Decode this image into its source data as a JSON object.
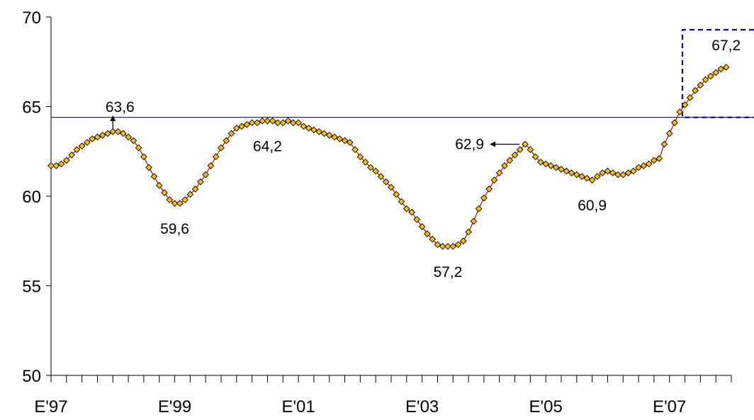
{
  "chart_data": {
    "type": "line",
    "title": "",
    "xlabel": "",
    "ylabel": "",
    "ylim": [
      50,
      70
    ],
    "y_ticks": [
      "50",
      "55",
      "60",
      "65",
      "70"
    ],
    "x_tick_labels": [
      "E'97",
      "E'99",
      "E'01",
      "E'03",
      "E'05",
      "E'07"
    ],
    "x_domain": [
      0,
      132
    ],
    "x_label_months": [
      0,
      24,
      48,
      72,
      96,
      120
    ],
    "reference_line": {
      "value": 64.4,
      "color": "#0000cc"
    },
    "highlight_box": {
      "color": "#0000cc",
      "style": "dashed"
    },
    "series": [
      {
        "color": "#ffc000",
        "marker": "diamond",
        "points": [
          [
            0,
            61.7
          ],
          [
            1,
            61.7
          ],
          [
            2,
            61.8
          ],
          [
            3,
            62.0
          ],
          [
            4,
            62.3
          ],
          [
            5,
            62.6
          ],
          [
            6,
            62.8
          ],
          [
            7,
            63.0
          ],
          [
            8,
            63.2
          ],
          [
            9,
            63.3
          ],
          [
            10,
            63.4
          ],
          [
            11,
            63.5
          ],
          [
            12,
            63.6
          ],
          [
            13,
            63.6
          ],
          [
            14,
            63.5
          ],
          [
            15,
            63.3
          ],
          [
            16,
            63.1
          ],
          [
            17,
            62.7
          ],
          [
            18,
            62.2
          ],
          [
            19,
            61.6
          ],
          [
            20,
            61.1
          ],
          [
            21,
            60.6
          ],
          [
            22,
            60.2
          ],
          [
            23,
            59.8
          ],
          [
            24,
            59.6
          ],
          [
            25,
            59.6
          ],
          [
            26,
            59.8
          ],
          [
            27,
            60.1
          ],
          [
            28,
            60.4
          ],
          [
            29,
            60.8
          ],
          [
            30,
            61.2
          ],
          [
            31,
            61.7
          ],
          [
            32,
            62.2
          ],
          [
            33,
            62.7
          ],
          [
            34,
            63.1
          ],
          [
            35,
            63.5
          ],
          [
            36,
            63.8
          ],
          [
            37,
            63.9
          ],
          [
            38,
            64.0
          ],
          [
            39,
            64.1
          ],
          [
            40,
            64.1
          ],
          [
            41,
            64.2
          ],
          [
            42,
            64.2
          ],
          [
            43,
            64.2
          ],
          [
            44,
            64.1
          ],
          [
            45,
            64.1
          ],
          [
            46,
            64.2
          ],
          [
            47,
            64.1
          ],
          [
            48,
            64.1
          ],
          [
            49,
            63.9
          ],
          [
            50,
            63.8
          ],
          [
            51,
            63.7
          ],
          [
            52,
            63.6
          ],
          [
            53,
            63.5
          ],
          [
            54,
            63.4
          ],
          [
            55,
            63.3
          ],
          [
            56,
            63.2
          ],
          [
            57,
            63.1
          ],
          [
            58,
            63.0
          ],
          [
            59,
            62.6
          ],
          [
            60,
            62.2
          ],
          [
            61,
            61.9
          ],
          [
            62,
            61.6
          ],
          [
            63,
            61.4
          ],
          [
            64,
            61.1
          ],
          [
            65,
            60.8
          ],
          [
            66,
            60.5
          ],
          [
            67,
            60.1
          ],
          [
            68,
            59.7
          ],
          [
            69,
            59.3
          ],
          [
            70,
            59.1
          ],
          [
            71,
            58.7
          ],
          [
            72,
            58.3
          ],
          [
            73,
            57.9
          ],
          [
            74,
            57.6
          ],
          [
            75,
            57.3
          ],
          [
            76,
            57.2
          ],
          [
            77,
            57.2
          ],
          [
            78,
            57.2
          ],
          [
            79,
            57.3
          ],
          [
            80,
            57.5
          ],
          [
            81,
            58.0
          ],
          [
            82,
            58.6
          ],
          [
            83,
            59.3
          ],
          [
            84,
            59.9
          ],
          [
            85,
            60.4
          ],
          [
            86,
            60.9
          ],
          [
            87,
            61.3
          ],
          [
            88,
            61.7
          ],
          [
            89,
            62.0
          ],
          [
            90,
            62.3
          ],
          [
            91,
            62.6
          ],
          [
            92,
            62.9
          ],
          [
            93,
            62.6
          ],
          [
            94,
            62.2
          ],
          [
            95,
            61.9
          ],
          [
            96,
            61.8
          ],
          [
            97,
            61.7
          ],
          [
            98,
            61.6
          ],
          [
            99,
            61.5
          ],
          [
            100,
            61.4
          ],
          [
            101,
            61.3
          ],
          [
            102,
            61.2
          ],
          [
            103,
            61.1
          ],
          [
            104,
            61.0
          ],
          [
            105,
            60.9
          ],
          [
            106,
            61.1
          ],
          [
            107,
            61.3
          ],
          [
            108,
            61.4
          ],
          [
            109,
            61.3
          ],
          [
            110,
            61.2
          ],
          [
            111,
            61.2
          ],
          [
            112,
            61.3
          ],
          [
            113,
            61.4
          ],
          [
            114,
            61.6
          ],
          [
            115,
            61.7
          ],
          [
            116,
            61.8
          ],
          [
            117,
            62.0
          ],
          [
            118,
            62.1
          ],
          [
            119,
            62.9
          ],
          [
            120,
            63.5
          ],
          [
            121,
            64.1
          ],
          [
            122,
            64.7
          ],
          [
            123,
            65.1
          ],
          [
            124,
            65.5
          ],
          [
            125,
            65.9
          ],
          [
            126,
            66.2
          ],
          [
            127,
            66.5
          ],
          [
            128,
            66.7
          ],
          [
            129,
            66.9
          ],
          [
            130,
            67.1
          ],
          [
            131,
            67.2
          ]
        ]
      }
    ],
    "annotations": [
      {
        "text": "63,6",
        "x": 12,
        "y": 63.6,
        "position": "above",
        "arrow": "up"
      },
      {
        "text": "59,6",
        "x": 24,
        "y": 59.6,
        "position": "below"
      },
      {
        "text": "64,2",
        "x": 42,
        "y": 64.2,
        "position": "below"
      },
      {
        "text": "57,2",
        "x": 77,
        "y": 57.2,
        "position": "below"
      },
      {
        "text": "62,9",
        "x": 92,
        "y": 62.9,
        "position": "left",
        "arrow": "left"
      },
      {
        "text": "60,9",
        "x": 105,
        "y": 60.9,
        "position": "below"
      },
      {
        "text": "67,2",
        "x": 131,
        "y": 67.2,
        "position": "above"
      }
    ]
  }
}
